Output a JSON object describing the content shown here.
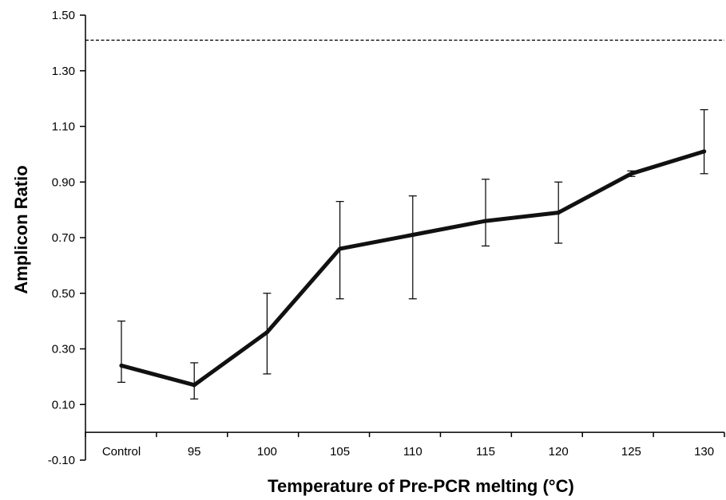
{
  "chart_data": {
    "type": "line",
    "title": "",
    "xlabel": "Temperature of Pre-PCR melting (°C)",
    "ylabel": "Amplicon Ratio",
    "categories": [
      "Control",
      "95",
      "100",
      "105",
      "110",
      "115",
      "120",
      "125",
      "130"
    ],
    "y_ticks": [
      "-0.10",
      "0.10",
      "0.30",
      "0.50",
      "0.70",
      "0.90",
      "1.10",
      "1.30",
      "1.50"
    ],
    "ylim": [
      -0.1,
      1.5
    ],
    "x_axis_crosses_at": 0.0,
    "grid": false,
    "legend": "none",
    "series": [
      {
        "values": [
          0.24,
          0.17,
          0.36,
          0.66,
          0.71,
          0.76,
          0.79,
          0.93,
          1.01
        ],
        "error_low": [
          0.18,
          0.12,
          0.21,
          0.48,
          0.48,
          0.67,
          0.68,
          0.92,
          0.93
        ],
        "error_high": [
          0.4,
          0.25,
          0.5,
          0.83,
          0.85,
          0.91,
          0.9,
          0.94,
          1.16
        ],
        "color": "#111111",
        "line_style": "solid"
      }
    ],
    "reference_line": {
      "y": 1.41,
      "line_style": "dashed",
      "color": "#000000"
    }
  }
}
